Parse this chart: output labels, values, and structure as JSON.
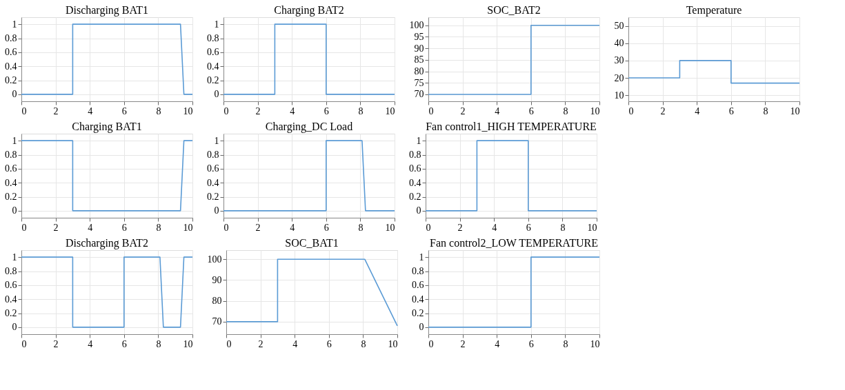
{
  "chart_data": [
    {
      "type": "line",
      "title": "Discharging BAT1",
      "x": [
        0,
        3,
        3,
        9.3,
        9.5,
        10
      ],
      "values": [
        0,
        0,
        1,
        1,
        0,
        0
      ],
      "color": "#5b9bd5",
      "xlim": [
        0,
        10
      ],
      "xticks": [
        0,
        2,
        4,
        6,
        8,
        10
      ],
      "ylim": [
        -0.1,
        1.1
      ],
      "yticks": [
        0,
        0.2,
        0.4,
        0.6,
        0.8,
        1
      ],
      "grid": true
    },
    {
      "type": "line",
      "title": "Charging BAT2",
      "x": [
        0,
        3,
        3,
        6,
        6,
        10
      ],
      "values": [
        0,
        0,
        1,
        1,
        0,
        0
      ],
      "color": "#5b9bd5",
      "xlim": [
        0,
        10
      ],
      "xticks": [
        0,
        2,
        4,
        6,
        8,
        10
      ],
      "ylim": [
        -0.1,
        1.1
      ],
      "yticks": [
        0,
        0.2,
        0.4,
        0.6,
        0.8,
        1
      ],
      "grid": true
    },
    {
      "type": "line",
      "title": "SOC_BAT2",
      "x": [
        0,
        6,
        6,
        10
      ],
      "values": [
        70,
        70,
        100,
        100
      ],
      "color": "#5b9bd5",
      "xlim": [
        0,
        10
      ],
      "xticks": [
        0,
        2,
        4,
        6,
        8,
        10
      ],
      "ylim": [
        67,
        103.5
      ],
      "yticks": [
        70,
        75,
        80,
        85,
        90,
        95,
        100
      ],
      "grid": true
    },
    {
      "type": "line",
      "title": "Temperature",
      "x": [
        0,
        3,
        3,
        6,
        6,
        10
      ],
      "values": [
        20,
        20,
        30,
        30,
        17,
        17
      ],
      "color": "#5b9bd5",
      "xlim": [
        0,
        10
      ],
      "xticks": [
        0,
        2,
        4,
        6,
        8,
        10
      ],
      "ylim": [
        6.5,
        55
      ],
      "yticks": [
        10,
        20,
        30,
        40,
        50
      ],
      "grid": true
    },
    {
      "type": "line",
      "title": "Charging BAT1",
      "x": [
        0,
        3,
        3,
        9.3,
        9.5,
        10
      ],
      "values": [
        1,
        1,
        0,
        0,
        1,
        1
      ],
      "color": "#5b9bd5",
      "xlim": [
        0,
        10
      ],
      "xticks": [
        0,
        2,
        4,
        6,
        8,
        10
      ],
      "ylim": [
        -0.1,
        1.1
      ],
      "yticks": [
        0,
        0.2,
        0.4,
        0.6,
        0.8,
        1
      ],
      "grid": true
    },
    {
      "type": "line",
      "title": "Charging_DC Load",
      "x": [
        0,
        6,
        6,
        8.1,
        8.3,
        10
      ],
      "values": [
        0,
        0,
        1,
        1,
        0,
        0
      ],
      "color": "#5b9bd5",
      "xlim": [
        0,
        10
      ],
      "xticks": [
        0,
        2,
        4,
        6,
        8,
        10
      ],
      "ylim": [
        -0.1,
        1.1
      ],
      "yticks": [
        0,
        0.2,
        0.4,
        0.6,
        0.8,
        1
      ],
      "grid": true
    },
    {
      "type": "line",
      "title": "Fan control1_HIGH TEMPERATURE",
      "x": [
        0,
        3,
        3,
        6,
        6,
        10
      ],
      "values": [
        0,
        0,
        1,
        1,
        0,
        0
      ],
      "color": "#5b9bd5",
      "xlim": [
        0,
        10
      ],
      "xticks": [
        0,
        2,
        4,
        6,
        8,
        10
      ],
      "ylim": [
        -0.1,
        1.1
      ],
      "yticks": [
        0,
        0.2,
        0.4,
        0.6,
        0.8,
        1
      ],
      "grid": true
    },
    {
      "type": "line",
      "title": "Discharging BAT2",
      "x": [
        0,
        3,
        3,
        6,
        6,
        8.1,
        8.3,
        9.3,
        9.5,
        10
      ],
      "values": [
        1,
        1,
        0,
        0,
        1,
        1,
        0,
        0,
        1,
        1
      ],
      "color": "#5b9bd5",
      "xlim": [
        0,
        10
      ],
      "xticks": [
        0,
        2,
        4,
        6,
        8,
        10
      ],
      "ylim": [
        -0.1,
        1.1
      ],
      "yticks": [
        0,
        0.2,
        0.4,
        0.6,
        0.8,
        1
      ],
      "grid": true
    },
    {
      "type": "line",
      "title": "SOC_BAT1",
      "x": [
        0,
        3,
        3,
        8.1,
        10
      ],
      "values": [
        70,
        70,
        100,
        100,
        68
      ],
      "color": "#5b9bd5",
      "xlim": [
        0,
        10
      ],
      "xticks": [
        0,
        2,
        4,
        6,
        8,
        10
      ],
      "ylim": [
        64,
        104.4
      ],
      "yticks": [
        70,
        80,
        90,
        100
      ],
      "grid": true
    },
    {
      "type": "line",
      "title": "Fan control2_LOW TEMPERATURE",
      "x": [
        0,
        6,
        6,
        10
      ],
      "values": [
        0,
        0,
        1,
        1
      ],
      "color": "#5b9bd5",
      "xlim": [
        0,
        10
      ],
      "xticks": [
        0,
        2,
        4,
        6,
        8,
        10
      ],
      "ylim": [
        -0.1,
        1.1
      ],
      "yticks": [
        0,
        0.2,
        0.4,
        0.6,
        0.8,
        1
      ],
      "grid": true
    }
  ]
}
